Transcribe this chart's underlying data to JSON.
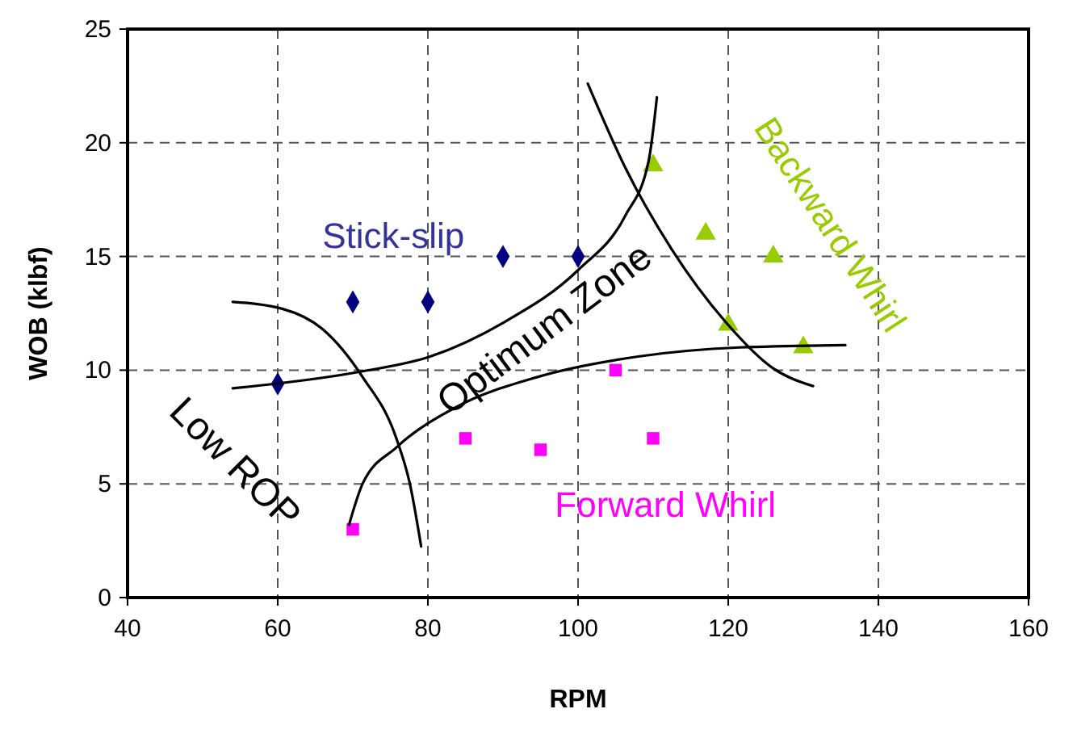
{
  "chart_data": {
    "type": "scatter",
    "xlabel": "RPM",
    "ylabel": "WOB (klbf)",
    "xlim": [
      40,
      160
    ],
    "xticks": [
      40,
      60,
      80,
      100,
      120,
      140,
      160
    ],
    "ylim": [
      0,
      25
    ],
    "yticks": [
      0,
      5,
      10,
      15,
      20,
      25
    ],
    "grid": true,
    "series": [
      {
        "color": "#000080",
        "marker": "diamond",
        "x": [
          60,
          70,
          80,
          90,
          100
        ],
        "values": [
          9.4,
          13,
          13,
          15,
          15
        ]
      },
      {
        "color": "#ff00ff",
        "marker": "square",
        "x": [
          70,
          85,
          95,
          105,
          110
        ],
        "values": [
          3,
          7,
          6.5,
          10,
          7
        ]
      },
      {
        "color": "#99cc00",
        "marker": "triangle",
        "x": [
          110,
          117,
          120,
          126,
          130
        ],
        "values": [
          19,
          16,
          12,
          15,
          11
        ]
      },
      {
        "type": "line",
        "color": "#000000",
        "marker": "none",
        "x": [
          54,
          70.4,
          80.3,
          90.1,
          100,
          106.3,
          109.4,
          110.5
        ],
        "values": [
          9.2,
          9.9,
          10.6,
          12.1,
          14.4,
          16.8,
          19.2,
          22
        ]
      },
      {
        "type": "line",
        "color": "#000000",
        "marker": "none",
        "x": [
          54,
          60.6,
          66,
          71.3,
          75.8,
          77.6,
          79.1
        ],
        "values": [
          13,
          12.7,
          11.8,
          9.7,
          7,
          5,
          2.25
        ]
      },
      {
        "type": "line",
        "color": "#000000",
        "marker": "none",
        "x": [
          69.5,
          71.3,
          75.8,
          83.9,
          94.6,
          108,
          121.5,
          135.6
        ],
        "values": [
          3.2,
          5,
          6.6,
          8.4,
          9.7,
          10.6,
          11,
          11.1
        ]
      },
      {
        "type": "line",
        "color": "#000000",
        "marker": "none",
        "x": [
          101.3,
          106.3,
          112.5,
          119.7,
          125.9,
          131.3
        ],
        "values": [
          22.6,
          18.9,
          15.3,
          12.1,
          10.1,
          9.3
        ]
      }
    ],
    "annotations": [
      "Stick-slip",
      "Optimum Zone",
      "Low ROP",
      "Forward Whirl",
      "Backward Whirl"
    ]
  }
}
